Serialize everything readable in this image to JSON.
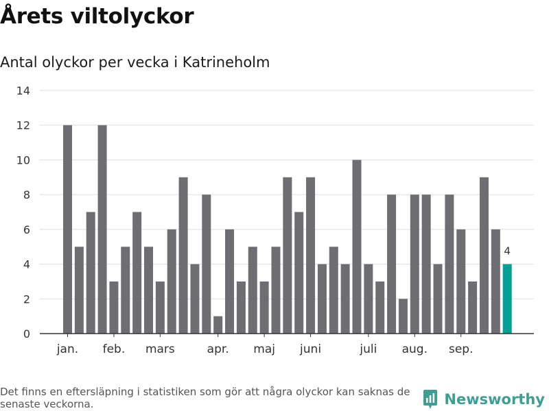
{
  "header": {
    "title": "Årets viltolyckor",
    "subtitle": "Antal olyckor per vecka i Katrineholm"
  },
  "chart_data": {
    "type": "bar",
    "title": "Årets viltolyckor",
    "subtitle": "Antal olyckor per vecka i Katrineholm",
    "xlabel": "",
    "ylabel": "",
    "ylim": [
      0,
      14
    ],
    "yticks": [
      0,
      2,
      4,
      6,
      8,
      10,
      12,
      14
    ],
    "grid": true,
    "legend": "none",
    "values": [
      12,
      5,
      7,
      12,
      3,
      5,
      7,
      5,
      3,
      6,
      9,
      4,
      8,
      1,
      6,
      3,
      5,
      3,
      5,
      9,
      7,
      9,
      4,
      5,
      4,
      10,
      4,
      3,
      8,
      2,
      8,
      8,
      4,
      8,
      6,
      3,
      9,
      6,
      4
    ],
    "month_labels": [
      {
        "label": "jan.",
        "bar_index": 0
      },
      {
        "label": "feb.",
        "bar_index": 4
      },
      {
        "label": "mars",
        "bar_index": 8
      },
      {
        "label": "apr.",
        "bar_index": 13
      },
      {
        "label": "maj",
        "bar_index": 17
      },
      {
        "label": "juni",
        "bar_index": 21
      },
      {
        "label": "juli",
        "bar_index": 26
      },
      {
        "label": "aug.",
        "bar_index": 30
      },
      {
        "label": "sep.",
        "bar_index": 34
      }
    ],
    "highlight": {
      "bar_index": 38,
      "label": "4"
    },
    "colors": {
      "bar": "#6e6d72",
      "highlight": "#00a197",
      "grid": "#dddddd",
      "axis": "#333333"
    }
  },
  "footer": {
    "note": "Det finns en eftersläpning i statistiken som gör att några olyckor kan saknas de senaste veckorna.",
    "brand": "Newsworthy",
    "brand_icon": "newsworthy-logo-icon"
  }
}
